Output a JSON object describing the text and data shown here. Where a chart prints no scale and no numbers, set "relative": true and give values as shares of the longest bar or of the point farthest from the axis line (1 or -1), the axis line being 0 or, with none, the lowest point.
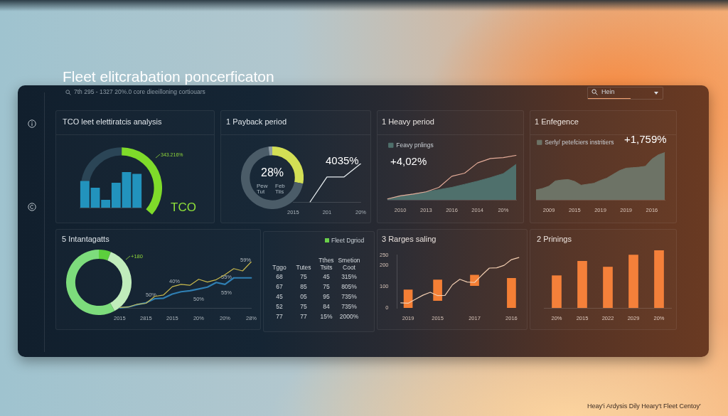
{
  "chart_data": [
    {
      "type": "other",
      "title": "Fleet elitcrabation poncerficaton",
      "subtitle": "7th 295 - 1327 20%.0 core dieeilloning cortiouars",
      "annotations": [
        "Hein"
      ]
    },
    {
      "type": "donut",
      "title": "TCO leet elettiratcis analysis",
      "categories": [
        null,
        null
      ],
      "values": [
        39,
        61
      ],
      "colors": [
        "#2b4556",
        "#7fdb2a"
      ],
      "annotations": [
        "343.216%",
        "TCO"
      ]
    },
    {
      "type": "bar",
      "relative": true,
      "categories": [
        null,
        null,
        null,
        null,
        null,
        null
      ],
      "values": [
        0.75,
        0.56,
        0.22,
        0.7,
        1,
        0.95
      ],
      "color": "#2293bd"
    },
    {
      "type": "donut",
      "title": "1 Payback period",
      "categories": [
        null,
        null,
        null
      ],
      "values": [
        28,
        70,
        2
      ],
      "colors": [
        "#d3df55",
        "#4b5c68",
        "#8d9aa3"
      ],
      "annotations": [
        "28%",
        "Pew Tut",
        "Feb Tiis"
      ]
    },
    {
      "type": "line",
      "relative": true,
      "categories": [
        "2015",
        null,
        "201",
        null,
        "20%"
      ],
      "values": [
        null,
        0,
        0.65,
        0.65,
        1
      ],
      "color": "#e6ecef",
      "annotations": [
        "4035%"
      ]
    },
    {
      "type": "area",
      "relative": true,
      "title": "1 Heavy period",
      "categories": [
        null,
        "2010",
        null,
        "2013",
        null,
        "2016",
        null,
        "2014",
        null,
        "20%",
        null
      ],
      "series": [
        {
          "name": "Feavy pnlings",
          "type": "area",
          "color": "#4f706c",
          "values": [
            0.02,
            0.09,
            0.13,
            0.18,
            0.23,
            0.28,
            0.35,
            0.42,
            0.5,
            0.59,
            0.8
          ]
        },
        {
          "type": "line",
          "color": "#e3ab98",
          "values": [
            0.02,
            0.09,
            0.13,
            0.18,
            0.28,
            0.53,
            0.6,
            0.83,
            0.93,
            0.95,
            1
          ]
        }
      ],
      "legend": "top left",
      "annotations": [
        "+4,02%"
      ]
    },
    {
      "type": "area",
      "relative": true,
      "title": "1 Enfegence",
      "categories": [
        null,
        null,
        "2009",
        null,
        null,
        null,
        "2015",
        null,
        null,
        null,
        "2019",
        null,
        null,
        null,
        "2019",
        null,
        null,
        null,
        "2016",
        null,
        null
      ],
      "series": [
        {
          "name": "Serly/ petefciers instritiers",
          "color": "#6d7366",
          "values": [
            0.21,
            0.24,
            0.29,
            0.4,
            0.42,
            0.43,
            0.39,
            0.31,
            0.33,
            0.35,
            0.41,
            0.46,
            0.54,
            0.62,
            0.67,
            0.68,
            0.69,
            0.71,
            0.86,
            0.95,
            1
          ]
        }
      ],
      "legend": "top left",
      "annotations": [
        "+1,759%"
      ]
    },
    {
      "type": "donut",
      "title": "5 Intantagatts",
      "categories": [
        null,
        null,
        null
      ],
      "values": [
        6,
        36,
        58
      ],
      "colors": [
        "#5ccf3c",
        "#c0ecbb",
        "#7ddc7c"
      ],
      "annotations": [
        "+180"
      ]
    },
    {
      "type": "line",
      "relative": true,
      "categories": [
        "2015",
        null,
        null,
        "2815",
        null,
        null,
        "2015",
        null,
        null,
        "20%",
        null,
        null,
        "20%",
        null,
        null,
        "28%"
      ],
      "series": [
        {
          "color": "#c9b94c",
          "values": [
            0.01,
            0.02,
            0.08,
            0.1,
            0.25,
            0.28,
            0.46,
            0.51,
            0.49,
            0.62,
            0.56,
            0.61,
            0.72,
            0.85,
            0.8,
            1
          ]
        },
        {
          "color": "#2f7fb3",
          "values": [
            0,
            0.02,
            0.07,
            0.11,
            0.2,
            0.21,
            0.3,
            0.35,
            0.37,
            0.41,
            0.45,
            0.55,
            0.51,
            0.65,
            0.65,
            0.65
          ]
        }
      ],
      "annotations": [
        "50%",
        "40%",
        "50%",
        "55%",
        "55%",
        "59%"
      ]
    },
    {
      "type": "other",
      "categories": [
        "Tggo",
        "Tutes",
        "Tthes Tsits",
        "Smetion Coot"
      ],
      "cell_labels": [
        [
          "68",
          "75",
          "45",
          "315%"
        ],
        [
          "67",
          "85",
          "75",
          "805%"
        ],
        [
          "45",
          "05",
          "95",
          "735%"
        ],
        [
          "52",
          "75",
          "84",
          "735%"
        ],
        [
          "77",
          "77",
          "15%",
          "2000%"
        ]
      ],
      "annotations": [
        "Fleet Dgriod"
      ]
    },
    {
      "type": "bar",
      "title": "3 Rarges saling",
      "categories": [
        null,
        "2019",
        null,
        null,
        null,
        "2015",
        null,
        null,
        null,
        null,
        "2017",
        null,
        null,
        null,
        null,
        "2016",
        null
      ],
      "ylim": [
        0,
        250
      ],
      "yticks": [
        0,
        100,
        200,
        250
      ],
      "series": [
        {
          "type": "bar",
          "color": "#f47f35",
          "values": [
            null,
            85,
            null,
            null,
            null,
            97,
            null,
            null,
            null,
            null,
            50,
            null,
            null,
            null,
            null,
            140,
            null
          ],
          "base": [
            null,
            0,
            null,
            null,
            null,
            35,
            null,
            null,
            null,
            null,
            105,
            null,
            null,
            null,
            null,
            0,
            null
          ]
        },
        {
          "type": "line",
          "color": "#f1cdb0",
          "values": [
            24,
            22,
            41,
            60,
            74,
            58,
            59,
            109,
            135,
            122,
            120,
            155,
            188,
            189,
            201,
            228,
            238
          ]
        }
      ]
    },
    {
      "type": "bar",
      "relative": true,
      "title": "2 Prinings",
      "categories": [
        "20%",
        "2015",
        "2022",
        "2029",
        "20%"
      ],
      "values": [
        0.56,
        0.81,
        0.71,
        0.92,
        1
      ],
      "color": "#f4803a"
    },
    {
      "type": "other",
      "annotations": [
        "Heay'i Ardysis Dily Heary't Fleet Centoy'"
      ]
    }
  ]
}
